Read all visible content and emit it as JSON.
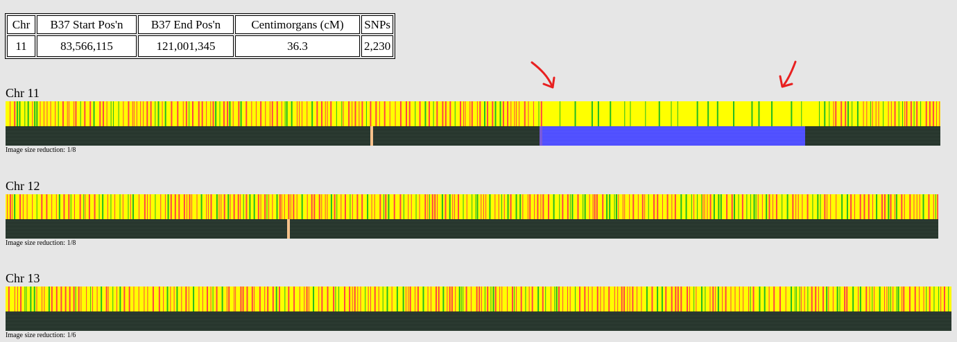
{
  "segment_table": {
    "headers": [
      "Chr",
      "B37 Start Pos'n",
      "B37 End Pos'n",
      "Centimorgans (cM)",
      "SNPs"
    ],
    "row": [
      "11",
      "83,566,115",
      "121,001,345",
      "36.3",
      "2,230"
    ]
  },
  "chromosomes": [
    {
      "title": "Chr 11",
      "reduction_label": "Image size reduction: 1/8",
      "match_segment": {
        "start_fraction": 0.571,
        "end_fraction": 0.855,
        "color": "#4848ff"
      },
      "centromere_fraction": 0.39
    },
    {
      "title": "Chr 12",
      "reduction_label": "Image size reduction: 1/8",
      "match_segment": null,
      "centromere_fraction": 0.302
    },
    {
      "title": "Chr 13",
      "reduction_label": "Image size reduction: 1/6",
      "match_segment": null,
      "centromere_fraction": null
    }
  ],
  "colors": {
    "background": "#e6e6e6",
    "match_yellow": "#ffff00",
    "mismatch_red": "#ff4444",
    "partial_green": "#22bb22",
    "bottom_dark": "#1f2b24",
    "centromere": "#f5c08a",
    "segment_blue": "#4848ff",
    "annotation_arrow": "#e82020"
  },
  "annotations": [
    {
      "type": "arrow",
      "icon": "arrow-down-right-icon"
    },
    {
      "type": "arrow",
      "icon": "arrow-down-left-icon"
    }
  ]
}
